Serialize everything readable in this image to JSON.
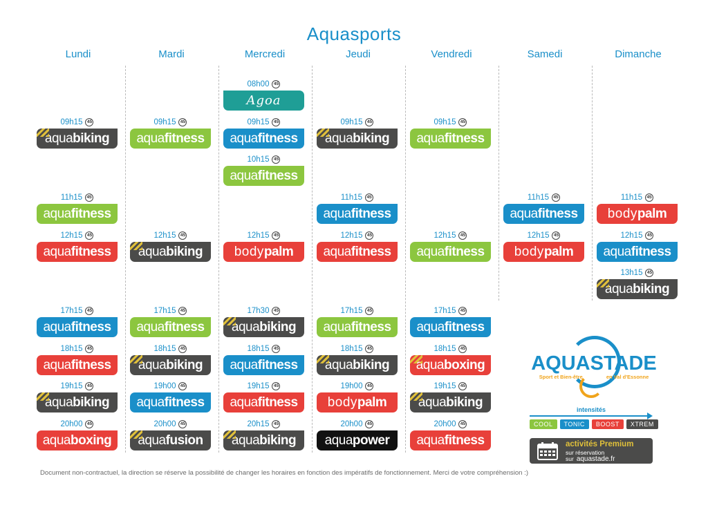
{
  "title": "Aquasports",
  "days": [
    "Lundi",
    "Mardi",
    "Mercredi",
    "Jeudi",
    "Vendredi",
    "Samedi",
    "Dimanche"
  ],
  "duration_label": "45",
  "colors": {
    "cool": "#8cc63f",
    "tonic": "#1a8fc9",
    "boost": "#e8403a",
    "xtrem": "#4b4b4a",
    "premium_stripes": "#e0c03a",
    "black": "#111111",
    "agoa": "#1f9e96"
  },
  "footer": "Document non-contractuel, la direction se réserve la possibilité de changer les horaires en fonction des impératifs de fonctionnement. Merci de votre compréhension :)",
  "logo": {
    "text": "AQUASTADE",
    "tagline_left": "Sport et Bien-être",
    "tagline_right": "en Val d'Essonne"
  },
  "intensities": {
    "label": "intensités",
    "levels": [
      "COOL",
      "TONIC",
      "BOOST",
      "XTREM"
    ]
  },
  "premium": {
    "title": "activités Premium",
    "line2": "sur réservation",
    "line3": "sur",
    "url": "aquastade.fr"
  },
  "schedule": [
    {
      "day": 0,
      "time": "09h15",
      "p1": "aqua",
      "p2": "biking",
      "style": "xtrem",
      "premium": true
    },
    {
      "day": 0,
      "time": "11h15",
      "p1": "aqua",
      "p2": "fitness",
      "style": "cool",
      "premium": false
    },
    {
      "day": 0,
      "time": "12h15",
      "p1": "aqua",
      "p2": "fitness",
      "style": "boost",
      "premium": false
    },
    {
      "day": 0,
      "time": "17h15",
      "p1": "aqua",
      "p2": "fitness",
      "style": "tonic",
      "premium": false
    },
    {
      "day": 0,
      "time": "18h15",
      "p1": "aqua",
      "p2": "fitness",
      "style": "boost",
      "premium": false
    },
    {
      "day": 0,
      "time": "19h15",
      "p1": "aqua",
      "p2": "biking",
      "style": "xtrem",
      "premium": true
    },
    {
      "day": 0,
      "time": "20h00",
      "p1": "aqua",
      "p2": "boxing",
      "style": "boost",
      "premium": false
    },
    {
      "day": 1,
      "time": "09h15",
      "p1": "aqua",
      "p2": "fitness",
      "style": "cool",
      "premium": false
    },
    {
      "day": 1,
      "time": "12h15",
      "p1": "aqua",
      "p2": "biking",
      "style": "xtrem",
      "premium": true
    },
    {
      "day": 1,
      "time": "17h15",
      "p1": "aqua",
      "p2": "fitness",
      "style": "cool",
      "premium": false
    },
    {
      "day": 1,
      "time": "18h15",
      "p1": "aqua",
      "p2": "biking",
      "style": "xtrem",
      "premium": true
    },
    {
      "day": 1,
      "time": "19h00",
      "p1": "aqua",
      "p2": "fitness",
      "style": "tonic",
      "premium": false
    },
    {
      "day": 1,
      "time": "20h00",
      "p1": "aqua",
      "p2": "fusion",
      "style": "xtrem",
      "premium": true
    },
    {
      "day": 2,
      "time": "08h00",
      "p1": "Agoa",
      "p2": "",
      "style": "agoa",
      "premium": false
    },
    {
      "day": 2,
      "time": "09h15",
      "p1": "aqua",
      "p2": "fitness",
      "style": "tonic",
      "premium": false
    },
    {
      "day": 2,
      "time": "10h15",
      "p1": "aqua",
      "p2": "fitness",
      "style": "cool",
      "premium": false
    },
    {
      "day": 2,
      "time": "12h15",
      "p1": "body",
      "p2": "palm",
      "style": "boost",
      "premium": false
    },
    {
      "day": 2,
      "time": "17h30",
      "p1": "aqua",
      "p2": "biking",
      "style": "xtrem",
      "premium": true
    },
    {
      "day": 2,
      "time": "18h15",
      "p1": "aqua",
      "p2": "fitness",
      "style": "tonic",
      "premium": false
    },
    {
      "day": 2,
      "time": "19h15",
      "p1": "aqua",
      "p2": "fitness",
      "style": "boost",
      "premium": false
    },
    {
      "day": 2,
      "time": "20h15",
      "p1": "aqua",
      "p2": "biking",
      "style": "xtrem",
      "premium": true
    },
    {
      "day": 3,
      "time": "09h15",
      "p1": "aqua",
      "p2": "biking",
      "style": "xtrem",
      "premium": true
    },
    {
      "day": 3,
      "time": "11h15",
      "p1": "aqua",
      "p2": "fitness",
      "style": "tonic",
      "premium": false
    },
    {
      "day": 3,
      "time": "12h15",
      "p1": "aqua",
      "p2": "fitness",
      "style": "boost",
      "premium": false
    },
    {
      "day": 3,
      "time": "17h15",
      "p1": "aqua",
      "p2": "fitness",
      "style": "cool",
      "premium": false
    },
    {
      "day": 3,
      "time": "18h15",
      "p1": "aqua",
      "p2": "biking",
      "style": "xtrem",
      "premium": true
    },
    {
      "day": 3,
      "time": "19h00",
      "p1": "body",
      "p2": "palm",
      "style": "boost",
      "premium": false
    },
    {
      "day": 3,
      "time": "20h00",
      "p1": "aqua",
      "p2": "power",
      "style": "black",
      "premium": false
    },
    {
      "day": 4,
      "time": "09h15",
      "p1": "aqua",
      "p2": "fitness",
      "style": "cool",
      "premium": false
    },
    {
      "day": 4,
      "time": "12h15",
      "p1": "aqua",
      "p2": "fitness",
      "style": "cool",
      "premium": false
    },
    {
      "day": 4,
      "time": "17h15",
      "p1": "aqua",
      "p2": "fitness",
      "style": "tonic",
      "premium": false
    },
    {
      "day": 4,
      "time": "18h15",
      "p1": "aqua",
      "p2": "boxing",
      "style": "boost",
      "premium": true
    },
    {
      "day": 4,
      "time": "19h15",
      "p1": "aqua",
      "p2": "biking",
      "style": "xtrem",
      "premium": true
    },
    {
      "day": 4,
      "time": "20h00",
      "p1": "aqua",
      "p2": "fitness",
      "style": "boost",
      "premium": false
    },
    {
      "day": 5,
      "time": "11h15",
      "p1": "aqua",
      "p2": "fitness",
      "style": "tonic",
      "premium": false
    },
    {
      "day": 5,
      "time": "12h15",
      "p1": "body",
      "p2": "palm",
      "style": "boost",
      "premium": false
    },
    {
      "day": 6,
      "time": "11h15",
      "p1": "body",
      "p2": "palm",
      "style": "boost",
      "premium": false
    },
    {
      "day": 6,
      "time": "12h15",
      "p1": "aqua",
      "p2": "fitness",
      "style": "tonic",
      "premium": false
    },
    {
      "day": 6,
      "time": "13h15",
      "p1": "aqua",
      "p2": "biking",
      "style": "xtrem",
      "premium": true
    }
  ]
}
